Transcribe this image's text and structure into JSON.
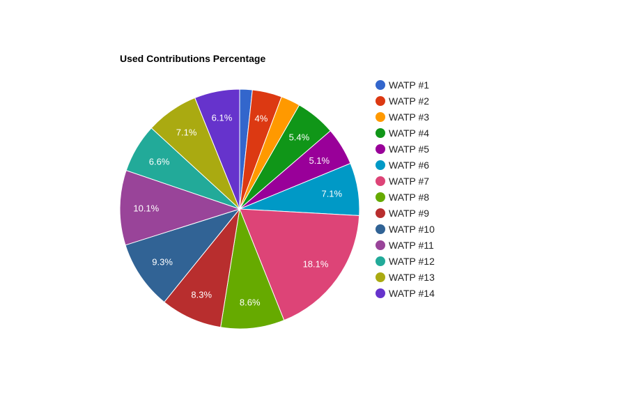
{
  "chart_data": {
    "type": "pie",
    "title": "Used Contributions Percentage",
    "legend_position": "right",
    "start_angle_deg": 0,
    "direction": "clockwise",
    "slices": [
      {
        "label": "WATP #1",
        "value": 1.7,
        "display": "",
        "color": "#3366cc"
      },
      {
        "label": "WATP #2",
        "value": 4.0,
        "display": "4%",
        "color": "#dc3912"
      },
      {
        "label": "WATP #3",
        "value": 2.6,
        "display": "",
        "color": "#ff9900"
      },
      {
        "label": "WATP #4",
        "value": 5.4,
        "display": "5.4%",
        "color": "#109618"
      },
      {
        "label": "WATP #5",
        "value": 5.1,
        "display": "5.1%",
        "color": "#990099"
      },
      {
        "label": "WATP #6",
        "value": 7.1,
        "display": "7.1%",
        "color": "#0099c6"
      },
      {
        "label": "WATP #7",
        "value": 18.1,
        "display": "18.1%",
        "color": "#dd4477"
      },
      {
        "label": "WATP #8",
        "value": 8.6,
        "display": "8.6%",
        "color": "#66aa00"
      },
      {
        "label": "WATP #9",
        "value": 8.3,
        "display": "8.3%",
        "color": "#b82e2e"
      },
      {
        "label": "WATP #10",
        "value": 9.3,
        "display": "9.3%",
        "color": "#316395"
      },
      {
        "label": "WATP #11",
        "value": 10.1,
        "display": "10.1%",
        "color": "#994499"
      },
      {
        "label": "WATP #12",
        "value": 6.6,
        "display": "6.6%",
        "color": "#22aa99"
      },
      {
        "label": "WATP #13",
        "value": 7.1,
        "display": "7.1%",
        "color": "#aaaa11"
      },
      {
        "label": "WATP #14",
        "value": 6.1,
        "display": "6.1%",
        "color": "#6633cc"
      }
    ]
  }
}
